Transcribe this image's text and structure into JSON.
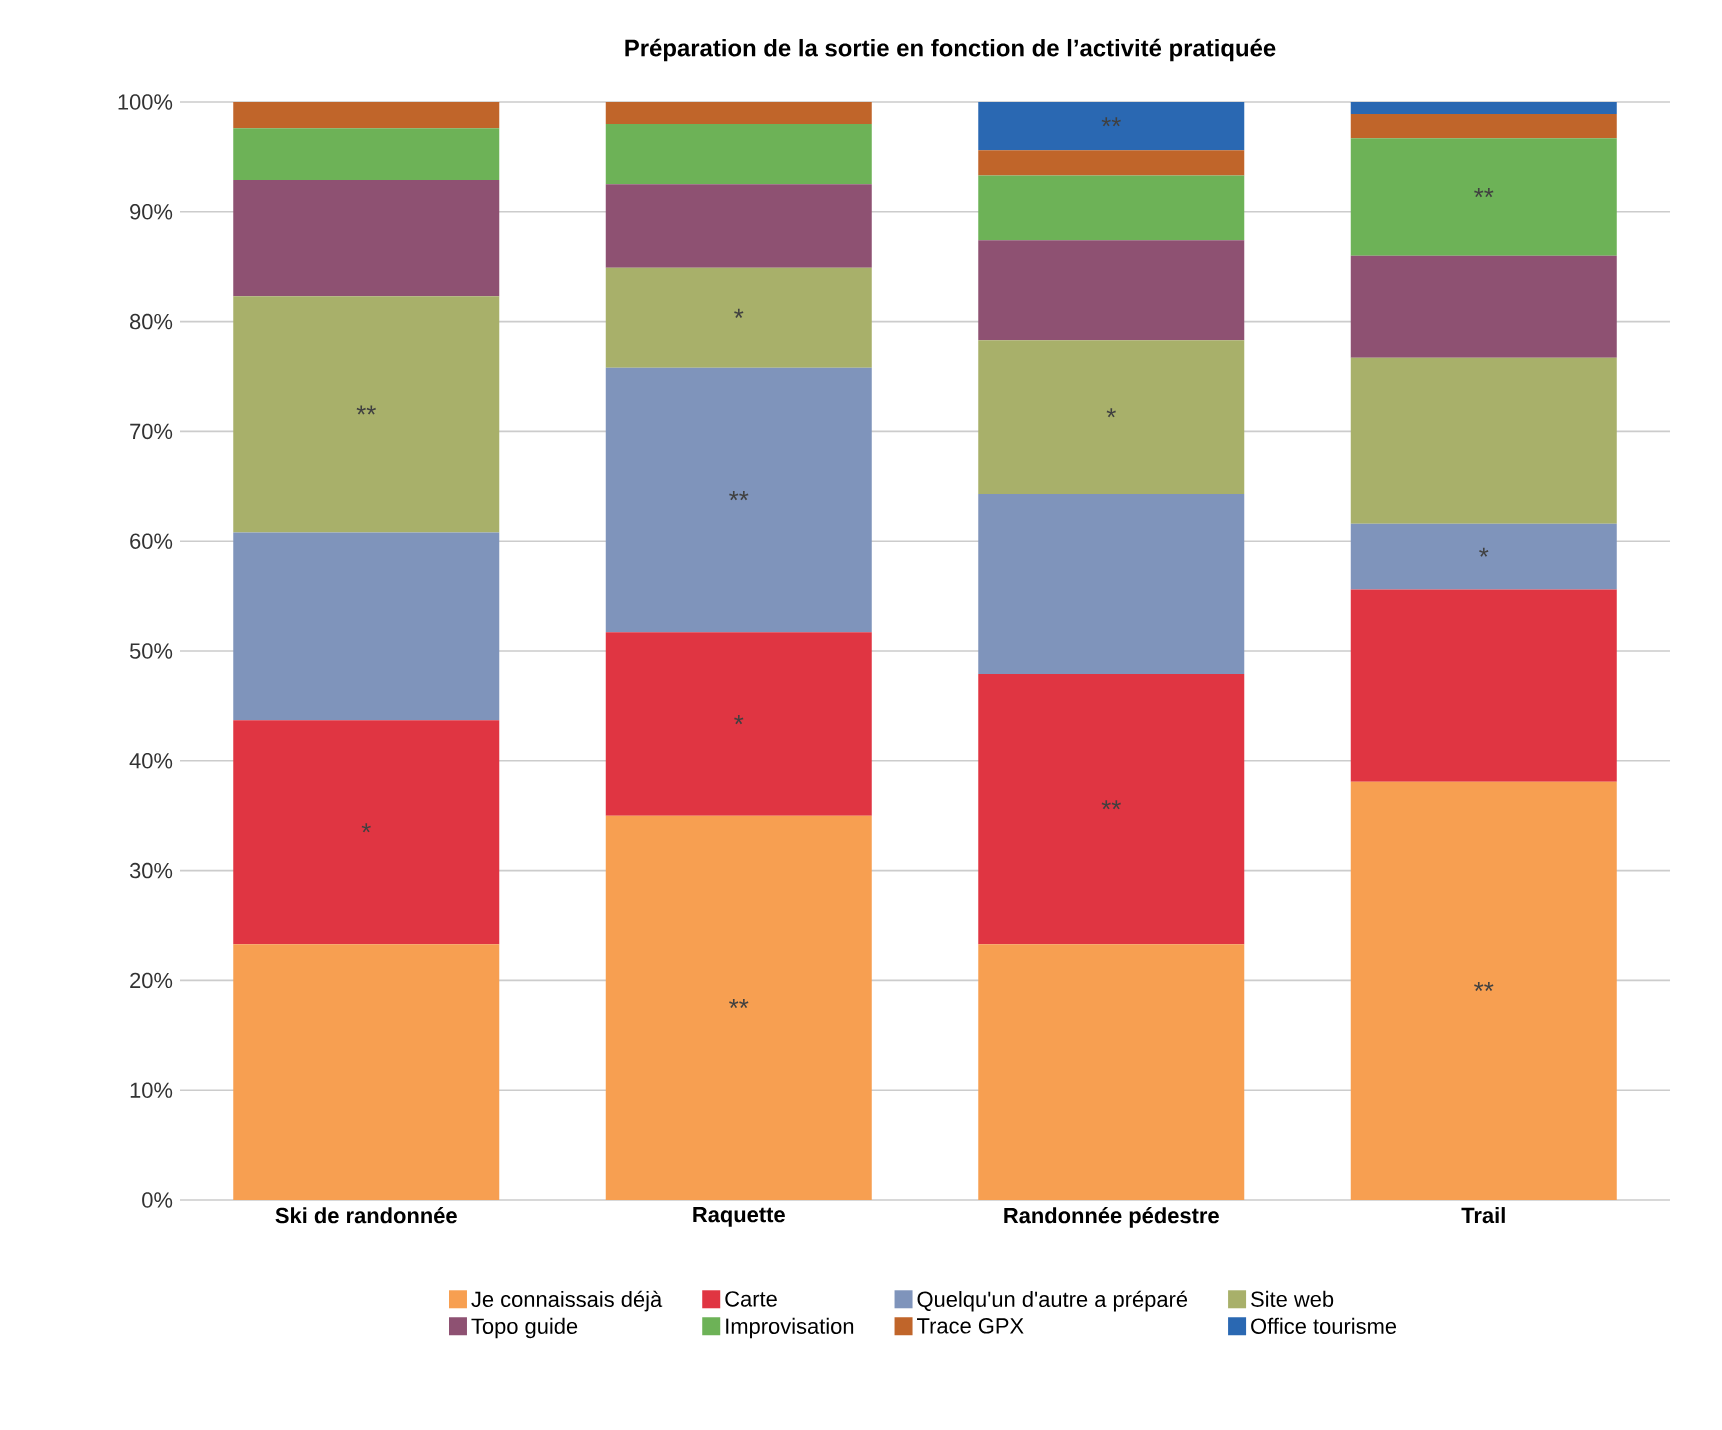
{
  "chart_data": {
    "type": "bar",
    "stacked": true,
    "title": "Préparation de la sortie en fonction de l’activité pratiquée",
    "categories": [
      "Ski de randonnée",
      "Raquette",
      "Randonnée pédestre",
      "Trail"
    ],
    "series": [
      {
        "name": "Je connaissais déjà",
        "color": "#f79f51",
        "values": [
          23.3,
          35.0,
          23.3,
          38.1
        ],
        "value_labels": [
          null,
          "**",
          null,
          "**"
        ]
      },
      {
        "name": "Carte",
        "color": "#e03542",
        "values": [
          20.4,
          16.7,
          24.6,
          17.5
        ],
        "value_labels": [
          "*",
          "*",
          "**",
          null
        ]
      },
      {
        "name": "Quelqu'un d'autre a préparé",
        "color": "#7f94bb",
        "values": [
          17.1,
          24.1,
          16.4,
          6.0
        ],
        "value_labels": [
          null,
          "**",
          null,
          "*"
        ]
      },
      {
        "name": "Site web",
        "color": "#a8b06a",
        "values": [
          21.5,
          9.1,
          14.0,
          15.1
        ],
        "value_labels": [
          "**",
          "*",
          "*",
          null
        ]
      },
      {
        "name": "Topo guide",
        "color": "#8e5172",
        "values": [
          10.6,
          7.6,
          9.1,
          9.3
        ]
      },
      {
        "name": "Improvisation",
        "color": "#6db257",
        "values": [
          4.7,
          5.5,
          5.9,
          10.7
        ],
        "value_labels": [
          null,
          null,
          null,
          "**"
        ]
      },
      {
        "name": "Trace GPX",
        "color": "#c0652a",
        "values": [
          2.4,
          2.0,
          2.3,
          2.2
        ]
      },
      {
        "name": "Office tourisme",
        "color": "#2a68b2",
        "values": [
          0,
          0,
          4.4,
          1.1
        ],
        "value_labels": [
          null,
          null,
          "**",
          null
        ]
      }
    ],
    "ylim": [
      0,
      100
    ],
    "yticks": [
      {
        "value": 0,
        "label": "0%"
      },
      {
        "value": 10,
        "label": "10%"
      },
      {
        "value": 20,
        "label": "20%"
      },
      {
        "value": 30,
        "label": "30%"
      },
      {
        "value": 40,
        "label": "40%"
      },
      {
        "value": 50,
        "label": "50%"
      },
      {
        "value": 60,
        "label": "60%"
      },
      {
        "value": 70,
        "label": "70%"
      },
      {
        "value": 80,
        "label": "80%"
      },
      {
        "value": 90,
        "label": "90%"
      },
      {
        "value": 100,
        "label": "100%"
      }
    ],
    "grid": "y",
    "legend": "bottom"
  }
}
